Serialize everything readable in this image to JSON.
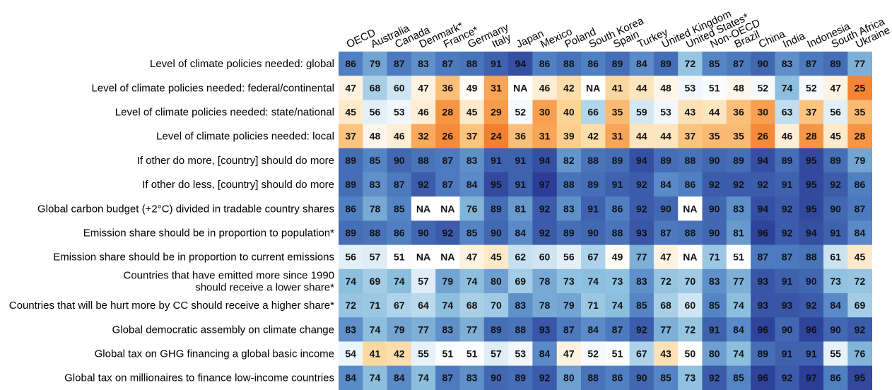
{
  "chart_data": {
    "type": "heatmap",
    "title": "",
    "xlabel": "",
    "ylabel": "",
    "color_scale": {
      "low": "#ee6a1a",
      "mid": "#ffffff",
      "high": "#2b3d96",
      "midpoint": 50
    },
    "columns": [
      "OECD",
      "Australia",
      "Canada",
      "Denmark*",
      "France*",
      "Germany",
      "Italy",
      "Japan",
      "Mexico",
      "Poland",
      "South Korea",
      "Spain",
      "Turkey",
      "United Kingdom",
      "United States*",
      "Non-OECD",
      "Brazil",
      "China",
      "India",
      "Indonesia",
      "South Africa",
      "Ukraine"
    ],
    "rows": [
      "Level of climate policies needed: global",
      "Level of climate policies needed: federal/continental",
      "Level of climate policies needed: state/national",
      "Level of climate policies needed: local",
      "If other do more, [country] should do more",
      "If other do less, [country] should do more",
      "Global carbon budget (+2°C) divided in tradable country shares",
      "Emission share should be in proportion to population*",
      "Emission share should be in proportion to current emissions",
      "Countries that have emitted more since 1990\nshould receive a lower share*",
      "Countries that will be hurt more by CC should receive a higher share*",
      "Global democratic assembly on climate change",
      "Global tax on GHG financing a global basic income",
      "Global tax on millionaires to finance low-income countries"
    ],
    "values": [
      [
        86,
        79,
        87,
        83,
        87,
        88,
        91,
        94,
        86,
        88,
        86,
        89,
        84,
        89,
        72,
        85,
        87,
        90,
        83,
        87,
        89,
        77
      ],
      [
        47,
        68,
        60,
        47,
        36,
        49,
        31,
        "NA",
        46,
        42,
        "NA",
        41,
        44,
        48,
        53,
        51,
        48,
        52,
        74,
        52,
        47,
        25
      ],
      [
        45,
        56,
        53,
        46,
        28,
        45,
        29,
        52,
        30,
        40,
        66,
        35,
        59,
        53,
        43,
        44,
        36,
        30,
        63,
        37,
        56,
        35
      ],
      [
        37,
        48,
        46,
        32,
        26,
        37,
        24,
        36,
        31,
        39,
        42,
        31,
        44,
        44,
        37,
        35,
        35,
        26,
        46,
        28,
        45,
        28
      ],
      [
        89,
        85,
        90,
        88,
        87,
        83,
        91,
        91,
        94,
        82,
        88,
        89,
        94,
        89,
        88,
        90,
        89,
        94,
        89,
        95,
        89,
        79
      ],
      [
        89,
        83,
        87,
        92,
        87,
        84,
        95,
        91,
        97,
        88,
        89,
        91,
        92,
        84,
        86,
        92,
        92,
        92,
        91,
        95,
        92,
        86
      ],
      [
        86,
        78,
        85,
        "NA",
        "NA",
        76,
        89,
        81,
        92,
        83,
        91,
        86,
        92,
        90,
        "NA",
        90,
        83,
        94,
        92,
        95,
        90,
        87
      ],
      [
        89,
        88,
        86,
        90,
        92,
        85,
        90,
        84,
        92,
        89,
        90,
        88,
        93,
        87,
        88,
        90,
        81,
        96,
        92,
        94,
        91,
        84
      ],
      [
        56,
        57,
        51,
        "NA",
        "NA",
        47,
        45,
        62,
        60,
        56,
        67,
        49,
        77,
        47,
        "NA",
        71,
        51,
        87,
        87,
        88,
        61,
        45
      ],
      [
        74,
        69,
        74,
        57,
        79,
        74,
        80,
        69,
        78,
        73,
        74,
        73,
        83,
        72,
        70,
        83,
        77,
        93,
        91,
        90,
        73,
        72
      ],
      [
        72,
        71,
        67,
        64,
        74,
        68,
        70,
        83,
        78,
        79,
        71,
        74,
        85,
        68,
        60,
        85,
        74,
        93,
        93,
        92,
        84,
        69
      ],
      [
        83,
        74,
        79,
        77,
        83,
        77,
        89,
        88,
        93,
        87,
        84,
        87,
        92,
        77,
        72,
        91,
        84,
        96,
        90,
        96,
        90,
        92
      ],
      [
        54,
        41,
        42,
        55,
        51,
        51,
        57,
        53,
        84,
        47,
        52,
        51,
        67,
        43,
        50,
        80,
        74,
        89,
        91,
        91,
        55,
        76
      ],
      [
        84,
        74,
        84,
        74,
        87,
        83,
        90,
        89,
        92,
        80,
        88,
        86,
        90,
        85,
        73,
        92,
        85,
        96,
        92,
        97,
        86,
        95
      ]
    ]
  }
}
